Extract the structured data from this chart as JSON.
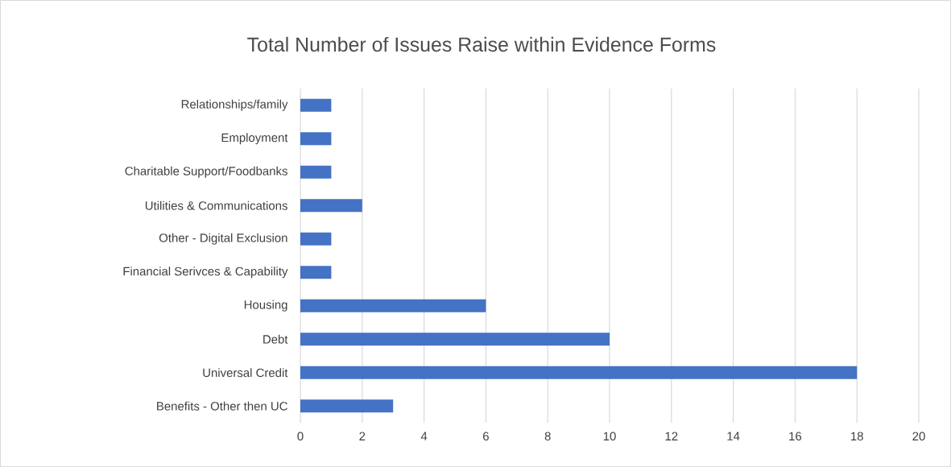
{
  "chart_data": {
    "type": "bar",
    "orientation": "horizontal",
    "title": "Total Number of Issues Raise within Evidence Forms",
    "categories": [
      "Relationships/family",
      "Employment",
      "Charitable Support/Foodbanks",
      "Utilities & Communications",
      "Other - Digital Exclusion",
      "Financial Serivces & Capability",
      "Housing",
      "Debt",
      "Universal Credit",
      "Benefits - Other then UC"
    ],
    "values": [
      1,
      1,
      1,
      2,
      1,
      1,
      6,
      10,
      18,
      3
    ],
    "color": "#4472c4",
    "xlim": [
      0,
      20
    ],
    "xticks": [
      0,
      2,
      4,
      6,
      8,
      10,
      12,
      14,
      16,
      18,
      20
    ],
    "grid": "x"
  }
}
